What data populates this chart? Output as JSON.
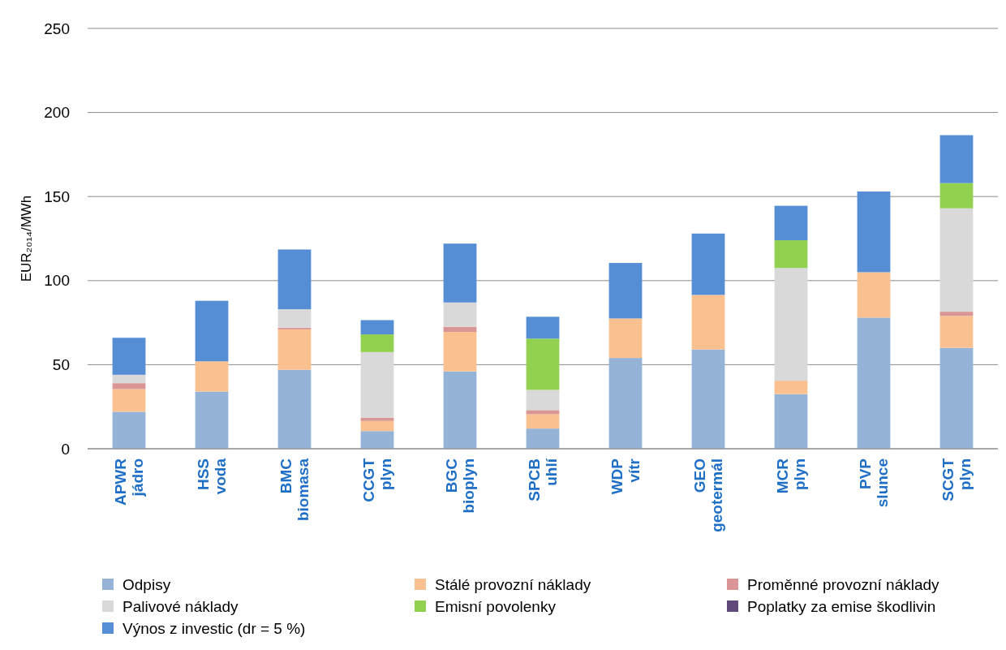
{
  "chart_data": {
    "type": "bar",
    "stacked": true,
    "ylabel": "EUR₂₀₁₄/MWh",
    "categories": [
      "APWR\njádro",
      "HSS\nvoda",
      "BMC\nbiomasa",
      "CCGT\nplyn",
      "BGC\nbioplyn",
      "SPCB\nuhlí",
      "WDP\nvítr",
      "GEO\ngeotermál",
      "MCR\nplyn",
      "PVP\nslunce",
      "SCGT\nplyn"
    ],
    "series": [
      {
        "name": "Odpisy",
        "color": "#95b3d7",
        "values": [
          22,
          34,
          47,
          10.5,
          46,
          12,
          54,
          59,
          32.5,
          78,
          60
        ]
      },
      {
        "name": "Stálé provozní náklady",
        "color": "#fac090",
        "values": [
          13.5,
          18,
          24,
          6,
          23.5,
          8.5,
          23.5,
          32.5,
          8,
          27,
          19
        ]
      },
      {
        "name": "Proměnné provozní náklady",
        "color": "#d99694",
        "values": [
          3.5,
          0,
          1,
          2,
          3,
          2.5,
          0,
          0,
          0,
          0,
          2.5
        ]
      },
      {
        "name": "Palivové náklady",
        "color": "#d9d9d9",
        "values": [
          5,
          0,
          11,
          39,
          14.5,
          12,
          0,
          0,
          67,
          0,
          61.5
        ]
      },
      {
        "name": "Emisní povolenky",
        "color": "#92d050",
        "values": [
          0,
          0,
          0,
          10.5,
          0,
          30.5,
          0,
          0,
          16.5,
          0,
          15
        ]
      },
      {
        "name": "Poplatky za emise škodlivin",
        "color": "#604a7b",
        "values": [
          0,
          0,
          0,
          0,
          0,
          0,
          0,
          0,
          0,
          0,
          0
        ]
      },
      {
        "name": "Výnos z investic (dr = 5 %)",
        "color": "#558ed5",
        "values": [
          22,
          36,
          35.5,
          8.5,
          35,
          13,
          33,
          36.5,
          20.5,
          48,
          28.5
        ]
      }
    ],
    "ylim": [
      0,
      250
    ],
    "yticks": [
      0,
      50,
      100,
      150,
      200,
      250
    ],
    "grid": "y",
    "legend": "bottom"
  }
}
